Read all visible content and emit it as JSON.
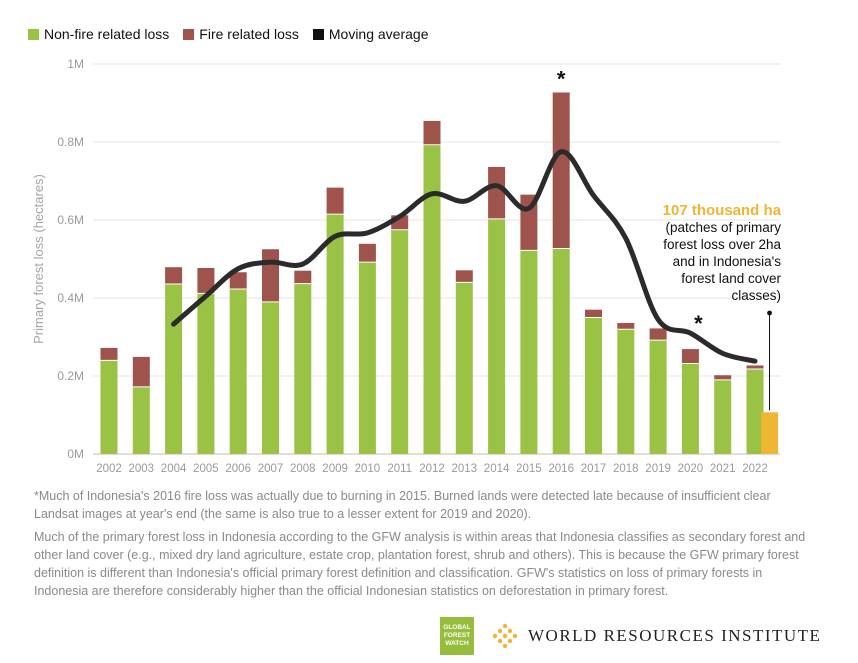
{
  "legend": {
    "nonfire_label": "Non-fire related loss",
    "fire_label": "Fire related loss",
    "avg_label": "Moving average"
  },
  "colors": {
    "nonfire": "#9ac245",
    "fire": "#9e544d",
    "average": "#2b2b2b",
    "highlight": "#f0b532",
    "grid": "#e5e5e5"
  },
  "chart_data": {
    "type": "bar",
    "stacked": true,
    "categories": [
      "2002",
      "2003",
      "2004",
      "2005",
      "2006",
      "2007",
      "2008",
      "2009",
      "2010",
      "2011",
      "2012",
      "2013",
      "2014",
      "2015",
      "2016",
      "2017",
      "2018",
      "2019",
      "2020",
      "2021",
      "2022"
    ],
    "series": [
      {
        "name": "Non-fire related loss",
        "values": [
          240000,
          172000,
          436000,
          412000,
          423000,
          390000,
          437000,
          615000,
          492000,
          575000,
          793000,
          440000,
          603000,
          522000,
          527000,
          350000,
          320000,
          292000,
          232000,
          190000,
          218000
        ]
      },
      {
        "name": "Fire related loss",
        "values": [
          32000,
          77000,
          43000,
          65000,
          43000,
          135000,
          33000,
          68000,
          47000,
          37000,
          61000,
          31000,
          133000,
          143000,
          400000,
          20000,
          16000,
          30000,
          37000,
          12000,
          9000
        ]
      },
      {
        "name": "Moving average",
        "type": "line",
        "x": [
          "2004",
          "2005",
          "2006",
          "2007",
          "2008",
          "2009",
          "2010",
          "2011",
          "2012",
          "2013",
          "2014",
          "2015",
          "2016",
          "2017",
          "2018",
          "2019",
          "2020",
          "2021",
          "2022"
        ],
        "values": [
          333000,
          405000,
          475000,
          492000,
          487000,
          558000,
          567000,
          609000,
          667000,
          648000,
          688000,
          630000,
          775000,
          663000,
          553000,
          345000,
          310000,
          258000,
          238000
        ]
      }
    ],
    "highlight": {
      "category": "2022",
      "value": 107000
    },
    "ylabel": "Primary forest loss (hectares)",
    "ylim": [
      0,
      1000000
    ],
    "yticks": [
      0,
      200000,
      400000,
      600000,
      800000,
      1000000
    ],
    "ytick_labels": [
      "0M",
      "0.2M",
      "0.4M",
      "0.6M",
      "0.8M",
      "1M"
    ],
    "grid": true,
    "legend_position": "top-left",
    "asterisks": [
      "2016",
      "2020"
    ],
    "asterisk_symbol": "*"
  },
  "annotation": {
    "title": "107 thousand ha",
    "lines": [
      "(patches of primary",
      "forest loss over 2ha",
      "and in Indonesia's",
      "forest land cover",
      "classes)"
    ]
  },
  "footnotes": {
    "note1": "*Much of Indonesia's 2016 fire loss was actually due to burning in 2015. Burned lands were detected late because of insufficient clear Landsat images at year's end (the same is also true to a lesser extent for 2019 and 2020).",
    "note2": "Much of the primary forest loss in Indonesia according to the GFW analysis is within areas that Indonesia classifies as secondary forest and other land cover (e.g., mixed dry land agriculture, estate crop, plantation forest, shrub and others). This is because the GFW primary forest definition is different than Indonesia's official primary forest definition and classification. GFW's statistics on loss of primary forests in Indonesia are therefore considerably higher than the official Indonesian statistics on deforestation in primary forest."
  },
  "logos": {
    "gfw_lines": [
      "GLOBAL",
      "FOREST",
      "WATCH"
    ],
    "wri_text": "WORLD RESOURCES INSTITUTE"
  }
}
